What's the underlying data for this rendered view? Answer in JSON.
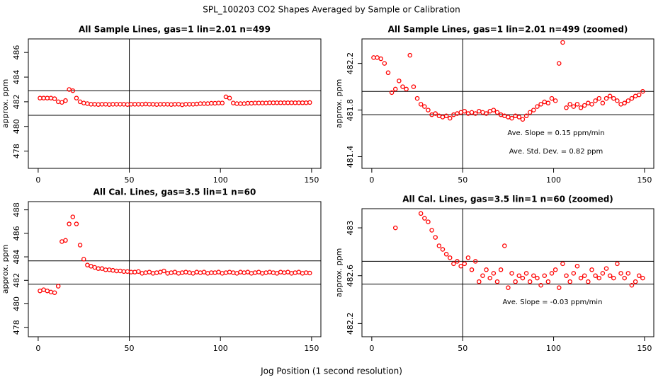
{
  "title": "SPL_100203  CO2 Shapes Averaged by Sample or Calibration",
  "x_label": "Jog Position (1 second resolution)",
  "chart_data": [
    {
      "type": "scatter",
      "title": "All Sample Lines, gas=1 lin=2.01 n=499",
      "y_label": "approx. ppm",
      "color": "#ff0000",
      "x": [
        1,
        3,
        5,
        7,
        9,
        11,
        13,
        15,
        17,
        19,
        21,
        23,
        25,
        27,
        29,
        31,
        33,
        35,
        37,
        39,
        41,
        43,
        45,
        47,
        49,
        51,
        53,
        55,
        57,
        59,
        61,
        63,
        65,
        67,
        69,
        71,
        73,
        75,
        77,
        79,
        81,
        83,
        85,
        87,
        89,
        91,
        93,
        95,
        97,
        99,
        101,
        103,
        105,
        107,
        109,
        111,
        113,
        115,
        117,
        119,
        121,
        123,
        125,
        127,
        129,
        131,
        133,
        135,
        137,
        139,
        141,
        143,
        145,
        147,
        149
      ],
      "values": [
        482.3,
        482.3,
        482.3,
        482.3,
        482.25,
        482.0,
        481.95,
        482.1,
        483.0,
        482.9,
        482.3,
        482.0,
        481.9,
        481.85,
        481.8,
        481.8,
        481.78,
        481.8,
        481.8,
        481.78,
        481.8,
        481.8,
        481.8,
        481.8,
        481.78,
        481.8,
        481.8,
        481.8,
        481.8,
        481.82,
        481.8,
        481.8,
        481.78,
        481.8,
        481.8,
        481.8,
        481.78,
        481.8,
        481.8,
        481.76,
        481.8,
        481.8,
        481.8,
        481.82,
        481.85,
        481.85,
        481.85,
        481.88,
        481.88,
        481.9,
        481.9,
        482.4,
        482.3,
        481.9,
        481.85,
        481.85,
        481.85,
        481.88,
        481.88,
        481.9,
        481.9,
        481.9,
        481.9,
        481.92,
        481.92,
        481.92,
        481.92,
        481.92,
        481.92,
        481.92,
        481.92,
        481.92,
        481.92,
        481.92,
        481.94
      ],
      "xlim": [
        -5.4,
        155.1
      ],
      "xticks": [
        0,
        50,
        100,
        150
      ],
      "ylim": [
        476.6,
        487.1
      ],
      "yticks": [
        478,
        480,
        482,
        484,
        486
      ],
      "hlines": [
        482.9,
        480.9
      ],
      "vlines": [
        50
      ],
      "annotations": []
    },
    {
      "type": "scatter",
      "title": "All Sample Lines, gas=1 lin=2.01 n=499 (zoomed)",
      "y_label": "approx. ppm",
      "color": "#ff0000",
      "x": [
        1,
        3,
        5,
        7,
        9,
        11,
        13,
        15,
        17,
        19,
        21,
        23,
        25,
        27,
        29,
        31,
        33,
        35,
        37,
        39,
        41,
        43,
        45,
        47,
        49,
        51,
        53,
        55,
        57,
        59,
        61,
        63,
        65,
        67,
        69,
        71,
        73,
        75,
        77,
        79,
        81,
        83,
        85,
        87,
        89,
        91,
        93,
        95,
        97,
        99,
        101,
        103,
        105,
        107,
        109,
        111,
        113,
        115,
        117,
        119,
        121,
        123,
        125,
        127,
        129,
        131,
        133,
        135,
        137,
        139,
        141,
        143,
        145,
        147,
        149
      ],
      "values": [
        482.25,
        482.25,
        482.24,
        482.2,
        482.12,
        481.95,
        481.98,
        482.05,
        482.0,
        481.98,
        482.27,
        482.0,
        481.9,
        481.85,
        481.83,
        481.8,
        481.76,
        481.77,
        481.75,
        481.74,
        481.75,
        481.73,
        481.76,
        481.77,
        481.78,
        481.79,
        481.77,
        481.78,
        481.77,
        481.79,
        481.78,
        481.77,
        481.79,
        481.8,
        481.78,
        481.76,
        481.75,
        481.74,
        481.73,
        481.75,
        481.74,
        481.72,
        481.75,
        481.78,
        481.8,
        481.83,
        481.85,
        481.87,
        481.86,
        481.9,
        481.88,
        482.2,
        482.38,
        481.82,
        481.85,
        481.83,
        481.85,
        481.82,
        481.84,
        481.86,
        481.85,
        481.88,
        481.9,
        481.86,
        481.9,
        481.92,
        481.9,
        481.88,
        481.85,
        481.86,
        481.88,
        481.9,
        481.92,
        481.93,
        481.96
      ],
      "xlim": [
        -5.4,
        155.1
      ],
      "xticks": [
        0,
        50,
        100,
        150
      ],
      "ylim": [
        481.3,
        482.41
      ],
      "yticks": [
        481.4,
        481.8,
        482.2
      ],
      "hlines": [
        481.96,
        481.76
      ],
      "vlines": [
        50
      ],
      "annotations": [
        "Ave. Slope =  0.15  ppm/min",
        "Ave. Std. Dev. =  0.82  ppm"
      ]
    },
    {
      "type": "scatter",
      "title": "All Cal. Lines, gas=3.5 lin=1 n=60",
      "y_label": "approx. ppm",
      "color": "#ff0000",
      "x": [
        1,
        3,
        5,
        7,
        9,
        11,
        13,
        15,
        17,
        19,
        21,
        23,
        25,
        27,
        29,
        31,
        33,
        35,
        37,
        39,
        41,
        43,
        45,
        47,
        49,
        51,
        53,
        55,
        57,
        59,
        61,
        63,
        65,
        67,
        69,
        71,
        73,
        75,
        77,
        79,
        81,
        83,
        85,
        87,
        89,
        91,
        93,
        95,
        97,
        99,
        101,
        103,
        105,
        107,
        109,
        111,
        113,
        115,
        117,
        119,
        121,
        123,
        125,
        127,
        129,
        131,
        133,
        135,
        137,
        139,
        141,
        143,
        145,
        147,
        149
      ],
      "values": [
        481.1,
        481.2,
        481.1,
        481.0,
        480.95,
        481.5,
        485.3,
        485.4,
        486.8,
        487.4,
        486.8,
        485.0,
        483.8,
        483.3,
        483.2,
        483.1,
        483.0,
        483.0,
        482.9,
        482.9,
        482.85,
        482.8,
        482.8,
        482.75,
        482.75,
        482.7,
        482.7,
        482.75,
        482.6,
        482.65,
        482.7,
        482.6,
        482.65,
        482.7,
        482.8,
        482.6,
        482.65,
        482.7,
        482.6,
        482.65,
        482.7,
        482.65,
        482.6,
        482.7,
        482.65,
        482.7,
        482.6,
        482.65,
        482.65,
        482.7,
        482.6,
        482.65,
        482.7,
        482.65,
        482.6,
        482.7,
        482.65,
        482.7,
        482.6,
        482.65,
        482.7,
        482.6,
        482.65,
        482.7,
        482.65,
        482.6,
        482.7,
        482.65,
        482.7,
        482.6,
        482.65,
        482.7,
        482.6,
        482.65,
        482.62
      ],
      "xlim": [
        -5.4,
        155.1
      ],
      "xticks": [
        0,
        50,
        100,
        150
      ],
      "ylim": [
        477.2,
        488.7
      ],
      "yticks": [
        478,
        480,
        482,
        484,
        486,
        488
      ],
      "hlines": [
        483.66,
        481.67
      ],
      "vlines": [
        50
      ],
      "annotations": []
    },
    {
      "type": "scatter",
      "title": "All Cal. Lines, gas=3.5 lin=1 n=60 (zoomed)",
      "y_label": "approx. ppm",
      "color": "#ff0000",
      "x": [
        1,
        3,
        5,
        7,
        9,
        11,
        13,
        15,
        17,
        19,
        21,
        23,
        25,
        27,
        29,
        31,
        33,
        35,
        37,
        39,
        41,
        43,
        45,
        47,
        49,
        51,
        53,
        55,
        57,
        59,
        61,
        63,
        65,
        67,
        69,
        71,
        73,
        75,
        77,
        79,
        81,
        83,
        85,
        87,
        89,
        91,
        93,
        95,
        97,
        99,
        101,
        103,
        105,
        107,
        109,
        111,
        113,
        115,
        117,
        119,
        121,
        123,
        125,
        127,
        129,
        131,
        133,
        135,
        137,
        139,
        141,
        143,
        145,
        147,
        149
      ],
      "values": [
        null,
        null,
        null,
        null,
        null,
        null,
        483.0,
        null,
        null,
        null,
        null,
        null,
        null,
        483.12,
        483.08,
        483.05,
        482.98,
        482.92,
        482.85,
        482.82,
        482.78,
        482.75,
        482.7,
        482.72,
        482.68,
        482.7,
        482.75,
        482.65,
        482.72,
        482.55,
        482.6,
        482.65,
        482.58,
        482.62,
        482.55,
        482.65,
        482.85,
        482.5,
        482.62,
        482.55,
        482.6,
        482.58,
        482.62,
        482.55,
        482.6,
        482.58,
        482.52,
        482.6,
        482.55,
        482.62,
        482.65,
        482.5,
        482.7,
        482.6,
        482.55,
        482.62,
        482.68,
        482.58,
        482.6,
        482.55,
        482.65,
        482.6,
        482.58,
        482.62,
        482.66,
        482.6,
        482.58,
        482.7,
        482.62,
        482.58,
        482.62,
        482.52,
        482.55,
        482.6,
        482.58
      ],
      "xlim": [
        -5.4,
        155.1
      ],
      "xticks": [
        0,
        50,
        100,
        150
      ],
      "ylim": [
        482.09,
        483.16
      ],
      "yticks": [
        482.2,
        482.6,
        483.0
      ],
      "hlines": [
        482.72,
        482.53
      ],
      "vlines": [
        50
      ],
      "annotations": [
        "Ave. Slope =  -0.03  ppm/min"
      ]
    }
  ]
}
